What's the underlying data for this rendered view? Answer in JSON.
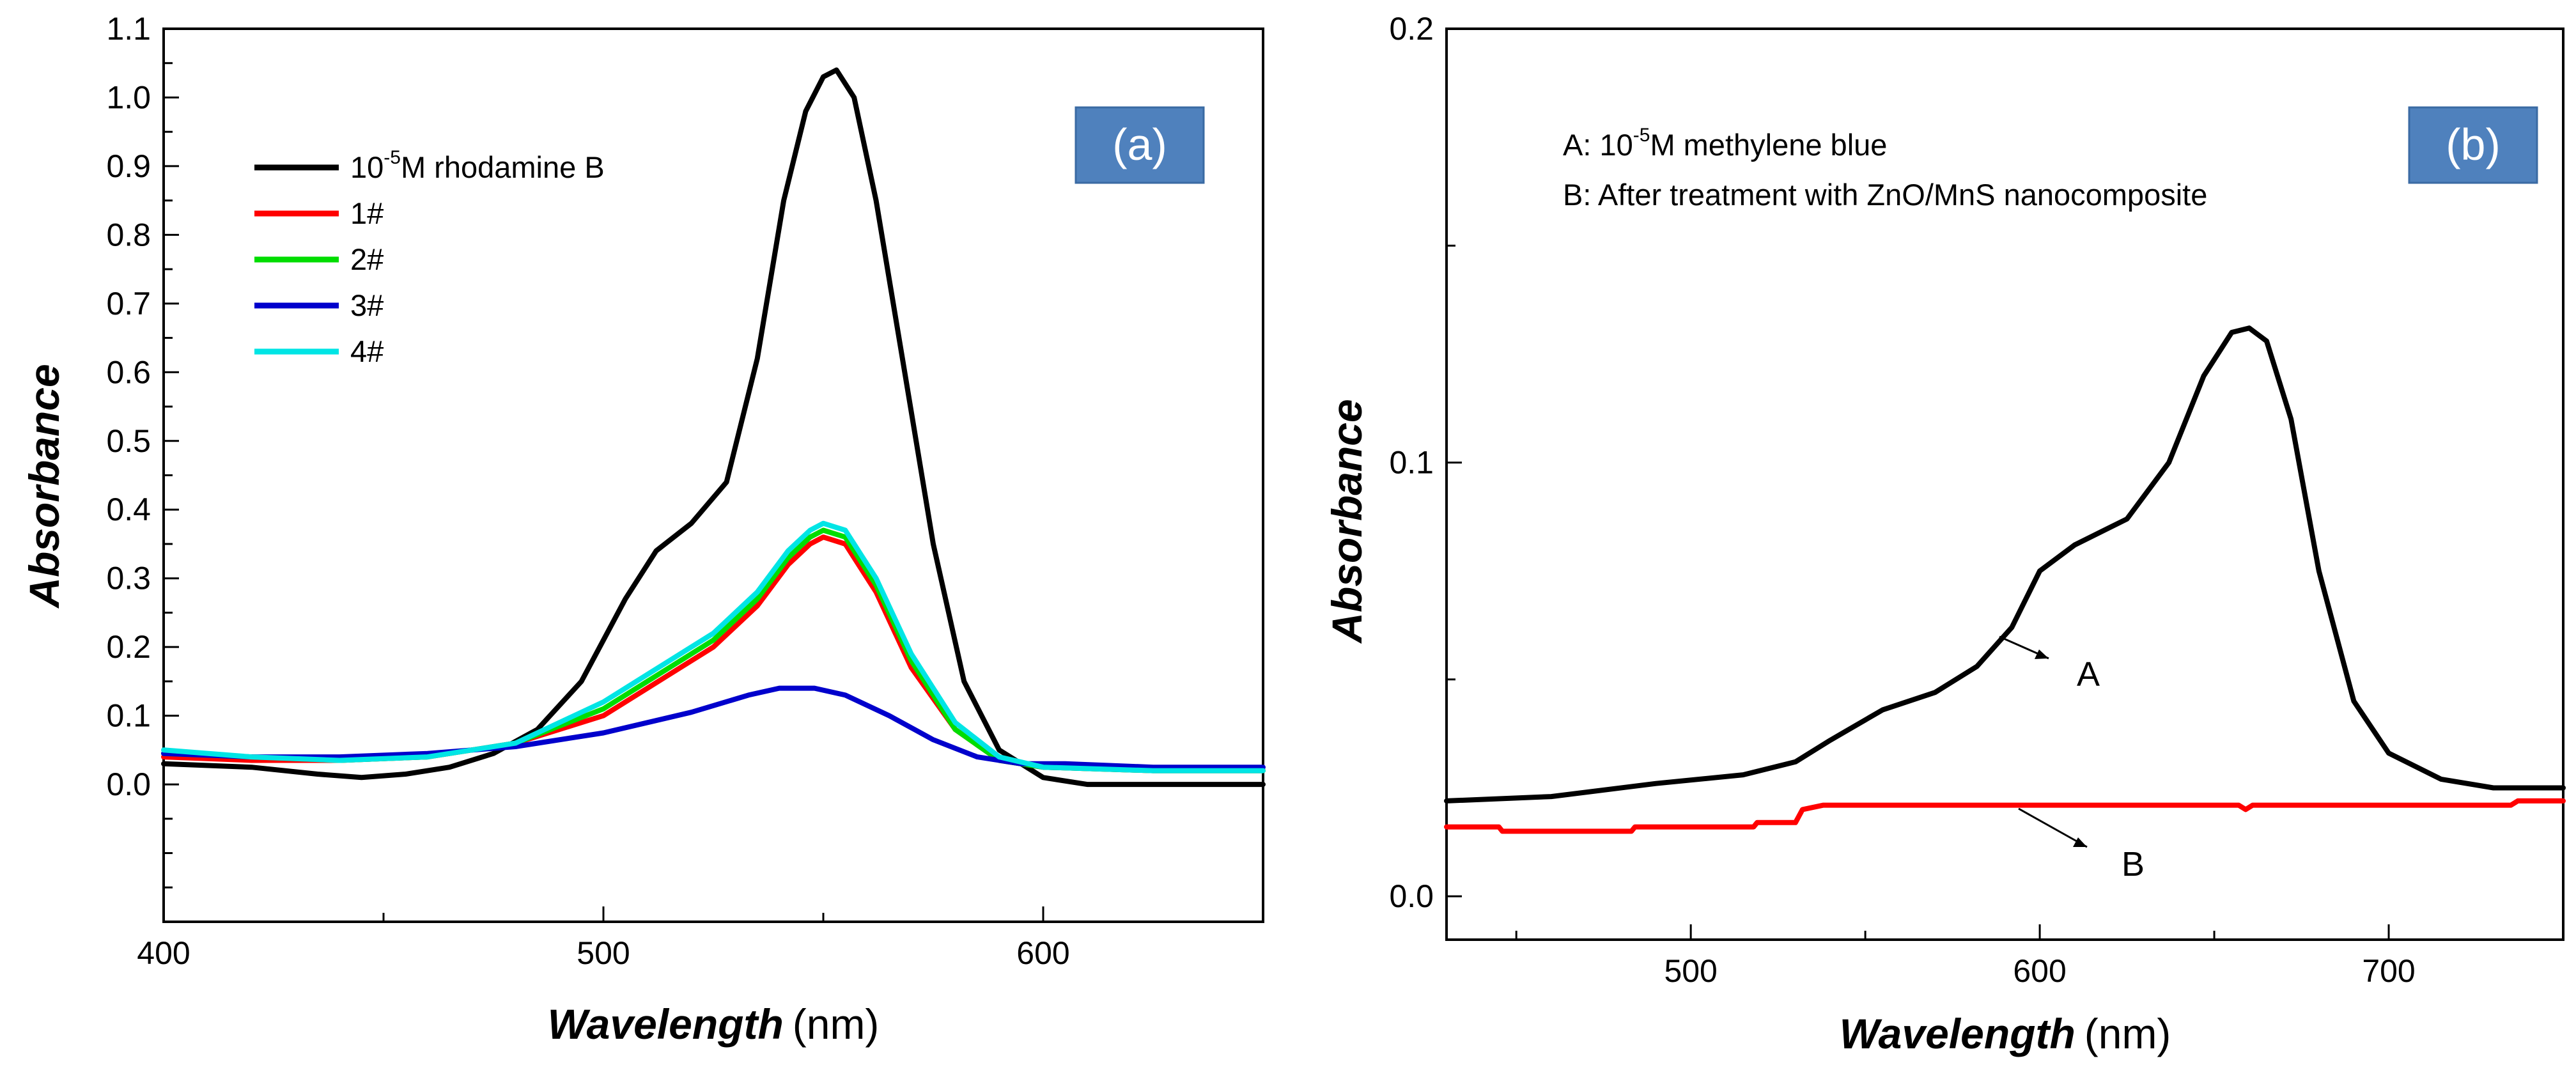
{
  "chart_data": [
    {
      "id": "a",
      "type": "line",
      "panel_label": "(a)",
      "badge_color": "#4f81bd",
      "xlabel_italic": "Wavelength",
      "xlabel_unit": "(nm)",
      "ylabel": "Absorbance",
      "xlim": [
        400,
        650
      ],
      "ylim": [
        -0.2,
        1.1
      ],
      "xticks": [
        400,
        500,
        600
      ],
      "yticks": [
        0.0,
        0.1,
        0.2,
        0.3,
        0.4,
        0.5,
        0.6,
        0.7,
        0.8,
        0.9,
        1.0,
        1.1
      ],
      "ytick_labels": [
        "0.0",
        "0.1",
        "0.2",
        "0.3",
        "0.4",
        "0.5",
        "0.6",
        "0.7",
        "0.8",
        "0.9",
        "1.0",
        "1.1"
      ],
      "legend_placement": "top-left",
      "series": [
        {
          "name": "rhodamine B",
          "legend_prefix": "10",
          "legend_sup": "-5",
          "legend_suffix": "M rhodamine B",
          "color": "#000000",
          "x": [
            400,
            420,
            435,
            445,
            455,
            465,
            475,
            485,
            495,
            505,
            512,
            520,
            528,
            535,
            541,
            546,
            550,
            553,
            557,
            562,
            568,
            575,
            582,
            590,
            600,
            610,
            625,
            650
          ],
          "y": [
            0.03,
            0.025,
            0.015,
            0.01,
            0.015,
            0.025,
            0.045,
            0.08,
            0.15,
            0.27,
            0.34,
            0.38,
            0.44,
            0.62,
            0.85,
            0.98,
            1.03,
            1.04,
            1.0,
            0.85,
            0.62,
            0.35,
            0.15,
            0.05,
            0.01,
            0.0,
            0.0,
            0.0
          ]
        },
        {
          "name": "1#",
          "legend_label": "1#",
          "color": "#ff0000",
          "x": [
            400,
            420,
            440,
            460,
            480,
            500,
            515,
            525,
            535,
            542,
            547,
            550,
            555,
            562,
            570,
            580,
            590,
            600,
            625,
            650
          ],
          "y": [
            0.04,
            0.035,
            0.035,
            0.04,
            0.06,
            0.1,
            0.16,
            0.2,
            0.26,
            0.32,
            0.35,
            0.36,
            0.35,
            0.28,
            0.17,
            0.08,
            0.035,
            0.025,
            0.02,
            0.02
          ]
        },
        {
          "name": "2#",
          "legend_label": "2#",
          "color": "#00dd00",
          "x": [
            400,
            420,
            440,
            460,
            480,
            500,
            515,
            525,
            535,
            542,
            547,
            550,
            555,
            562,
            570,
            580,
            590,
            600,
            625,
            650
          ],
          "y": [
            0.045,
            0.04,
            0.035,
            0.04,
            0.06,
            0.11,
            0.17,
            0.21,
            0.27,
            0.33,
            0.36,
            0.37,
            0.36,
            0.29,
            0.18,
            0.08,
            0.035,
            0.025,
            0.02,
            0.02
          ]
        },
        {
          "name": "3#",
          "legend_label": "3#",
          "color": "#0000cc",
          "x": [
            400,
            420,
            440,
            460,
            480,
            500,
            520,
            533,
            540,
            548,
            555,
            565,
            575,
            585,
            595,
            605,
            625,
            650
          ],
          "y": [
            0.045,
            0.04,
            0.04,
            0.045,
            0.055,
            0.075,
            0.105,
            0.13,
            0.14,
            0.14,
            0.13,
            0.1,
            0.065,
            0.04,
            0.03,
            0.03,
            0.025,
            0.025
          ]
        },
        {
          "name": "4#",
          "legend_label": "4#",
          "color": "#00e5e5",
          "x": [
            400,
            420,
            440,
            460,
            480,
            500,
            515,
            525,
            535,
            542,
            547,
            550,
            555,
            562,
            570,
            580,
            590,
            600,
            625,
            650
          ],
          "y": [
            0.05,
            0.04,
            0.035,
            0.04,
            0.06,
            0.12,
            0.18,
            0.22,
            0.28,
            0.34,
            0.37,
            0.38,
            0.37,
            0.3,
            0.19,
            0.09,
            0.04,
            0.025,
            0.02,
            0.02
          ]
        }
      ]
    },
    {
      "id": "b",
      "type": "line",
      "panel_label": "(b)",
      "badge_color": "#4f81bd",
      "xlabel_italic": "Wavelength",
      "xlabel_unit": "(nm)",
      "ylabel": "Absorbance",
      "xlim": [
        430,
        750
      ],
      "ylim": [
        -0.01,
        0.2
      ],
      "xticks": [
        500,
        600,
        700
      ],
      "yticks": [
        0.0,
        0.1,
        0.2
      ],
      "ytick_labels": [
        "0.0",
        "0.1",
        "0.2"
      ],
      "legend_lines": [
        {
          "prefix": "A: 10",
          "sup": "-5",
          "suffix": "M methylene blue"
        },
        {
          "prefix": "B: After treatment with ZnO/MnS nanocomposite",
          "sup": "",
          "suffix": ""
        }
      ],
      "annotations": [
        {
          "text": "A",
          "x": 647,
          "y": 0.052,
          "arrow_to_x": 590,
          "arrow_to_y": 0.06
        },
        {
          "text": "B",
          "x": 655,
          "y": 0.008,
          "arrow_to_x": 598,
          "arrow_to_y": 0.02
        }
      ],
      "series": [
        {
          "name": "A",
          "color": "#000000",
          "x": [
            430,
            460,
            490,
            515,
            530,
            540,
            555,
            570,
            582,
            592,
            600,
            610,
            625,
            637,
            647,
            655,
            660,
            665,
            672,
            680,
            690,
            700,
            715,
            730,
            750
          ],
          "y": [
            0.022,
            0.023,
            0.026,
            0.028,
            0.031,
            0.036,
            0.043,
            0.047,
            0.053,
            0.062,
            0.075,
            0.081,
            0.087,
            0.1,
            0.12,
            0.13,
            0.131,
            0.128,
            0.11,
            0.075,
            0.045,
            0.033,
            0.027,
            0.025,
            0.025
          ]
        },
        {
          "name": "B",
          "color": "#ff0000",
          "x": [
            430,
            445,
            446,
            483,
            484,
            518,
            519,
            530,
            532,
            538,
            560,
            600,
            657,
            659,
            661,
            700,
            735,
            737,
            750
          ],
          "y": [
            0.016,
            0.016,
            0.015,
            0.015,
            0.016,
            0.016,
            0.017,
            0.017,
            0.02,
            0.021,
            0.021,
            0.021,
            0.021,
            0.02,
            0.021,
            0.021,
            0.021,
            0.022,
            0.022
          ]
        }
      ]
    }
  ]
}
